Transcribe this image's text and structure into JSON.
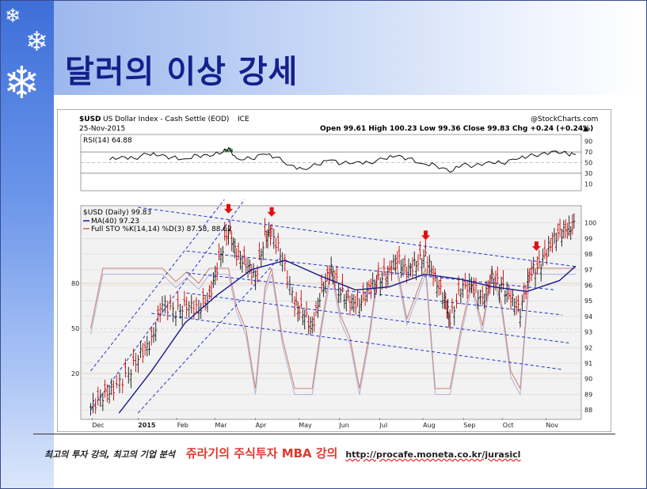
{
  "slide": {
    "title": "달러의 이상 강세",
    "footer_tagline": "최고의 투자 강의, 최고의 기업 분석",
    "footer_course": "쥬라기의 주식투자 MBA 강의",
    "footer_url": "http://procafe.moneta.co.kr/jurasicl"
  },
  "icons": [
    "snowflake-icon",
    "snowflake-icon",
    "snowflake-icon"
  ],
  "colors": {
    "title": "#14208c",
    "price_up": "#111111",
    "price_down": "#cc0000",
    "ma40": "#1a1a8c",
    "trend_lines": "#2233cc",
    "sto_k": "#c46a56",
    "sto_d": "#a7a7d8",
    "signal_arrow": "#e01010",
    "rsi_fill": "#2e7d32"
  },
  "chart_header": {
    "symbol": "$USD",
    "name": "US Dollar Index - Cash Settle (EOD)",
    "exchange": "ICE",
    "date": "25-Nov-2015",
    "ohlc": "Open 99.61  High 100.23  Low 99.36  Close 99.83  Chg +0.24 (+0.24%)",
    "arrow": "▲",
    "watermark": "@StockCharts.com"
  },
  "chart_data": [
    {
      "type": "line",
      "title": "RSI(14) 64.88",
      "yticks": [
        90,
        70,
        50,
        30,
        10
      ],
      "ylim": [
        0,
        100
      ],
      "reference_lines": [
        70,
        50,
        30
      ],
      "x": [
        "2014-12-15",
        "2014-12-24",
        "2015-01-02",
        "2015-01-12",
        "2015-01-21",
        "2015-01-30",
        "2015-02-09",
        "2015-02-18",
        "2015-02-27",
        "2015-03-09",
        "2015-03-13",
        "2015-03-19",
        "2015-03-30",
        "2015-04-08",
        "2015-04-17",
        "2015-04-28",
        "2015-05-07",
        "2015-05-18",
        "2015-05-27",
        "2015-06-05",
        "2015-06-16",
        "2015-06-25",
        "2015-07-06",
        "2015-07-15",
        "2015-07-24",
        "2015-08-04",
        "2015-08-13",
        "2015-08-24",
        "2015-09-02",
        "2015-09-11",
        "2015-09-22",
        "2015-10-01",
        "2015-10-12",
        "2015-10-21",
        "2015-10-30",
        "2015-11-10",
        "2015-11-19",
        "2015-11-25"
      ],
      "values": [
        55,
        62,
        58,
        66,
        63,
        60,
        57,
        64,
        62,
        70,
        78,
        58,
        57,
        66,
        60,
        45,
        38,
        46,
        55,
        48,
        52,
        50,
        57,
        62,
        58,
        48,
        46,
        32,
        46,
        44,
        52,
        49,
        56,
        62,
        66,
        72,
        66,
        64.88
      ]
    },
    {
      "type": "line",
      "title": "$USD (Daily) 99.83",
      "yticks": [
        100,
        99,
        98,
        97,
        96,
        95,
        94,
        93,
        92,
        91,
        90,
        89,
        88
      ],
      "ylim": [
        87.5,
        101
      ],
      "categories": [
        "Dec",
        "2015",
        "Feb",
        "Mar",
        "Apr",
        "May",
        "Jun",
        "Jul",
        "Aug",
        "Sep",
        "Oct",
        "Nov"
      ],
      "series": [
        {
          "name": "$USD (Daily) 99.83",
          "x": [
            "2014-12-01",
            "2014-12-10",
            "2014-12-18",
            "2014-12-29",
            "2015-01-07",
            "2015-01-15",
            "2015-01-23",
            "2015-02-02",
            "2015-02-10",
            "2015-02-19",
            "2015-02-27",
            "2015-03-06",
            "2015-03-13",
            "2015-03-19",
            "2015-03-26",
            "2015-04-02",
            "2015-04-09",
            "2015-04-14",
            "2015-04-22",
            "2015-05-01",
            "2015-05-07",
            "2015-05-14",
            "2015-05-21",
            "2015-05-28",
            "2015-06-04",
            "2015-06-11",
            "2015-06-18",
            "2015-06-25",
            "2015-07-02",
            "2015-07-09",
            "2015-07-16",
            "2015-07-23",
            "2015-07-30",
            "2015-08-06",
            "2015-08-13",
            "2015-08-20",
            "2015-08-24",
            "2015-09-01",
            "2015-09-09",
            "2015-09-17",
            "2015-09-24",
            "2015-10-01",
            "2015-10-08",
            "2015-10-15",
            "2015-10-22",
            "2015-10-29",
            "2015-11-05",
            "2015-11-12",
            "2015-11-19",
            "2015-11-25"
          ],
          "values": [
            88.2,
            88.9,
            89.4,
            90.3,
            91.6,
            92.4,
            94.8,
            94.3,
            94.7,
            94.5,
            95.3,
            97.6,
            99.6,
            98.0,
            97.4,
            96.5,
            99.1,
            99.4,
            97.7,
            94.8,
            94.3,
            93.3,
            95.7,
            97.1,
            95.6,
            94.9,
            94.8,
            95.8,
            96.3,
            96.7,
            97.7,
            96.9,
            97.4,
            97.9,
            96.4,
            95.1,
            93.8,
            95.8,
            96.1,
            95.0,
            96.4,
            96.0,
            95.2,
            94.3,
            96.8,
            97.2,
            98.4,
            99.3,
            99.6,
            99.83
          ]
        },
        {
          "name": "MA(40) 97.23",
          "x": [
            "2014-12-22",
            "2015-01-15",
            "2015-02-09",
            "2015-03-05",
            "2015-03-30",
            "2015-04-24",
            "2015-05-20",
            "2015-06-15",
            "2015-07-10",
            "2015-08-05",
            "2015-08-31",
            "2015-09-25",
            "2015-10-20",
            "2015-11-13",
            "2015-11-25"
          ],
          "values": [
            87.8,
            90.5,
            93.6,
            95.4,
            97.0,
            97.6,
            96.6,
            95.7,
            95.9,
            96.7,
            96.4,
            95.9,
            95.6,
            96.3,
            97.23
          ]
        }
      ],
      "sto_scale_ticks": [
        80,
        50,
        20
      ],
      "sto_series": [
        {
          "name": "%K(14,14)",
          "value": 87.58
        },
        {
          "name": "%D(3)",
          "value": 88.62
        }
      ],
      "sto_legend": "Full STO %K(14,14) %D(3) 87.58, 88.62",
      "signal_arrows_x": [
        "2015-03-13",
        "2015-04-14",
        "2015-08-06",
        "2015-10-27"
      ]
    }
  ]
}
